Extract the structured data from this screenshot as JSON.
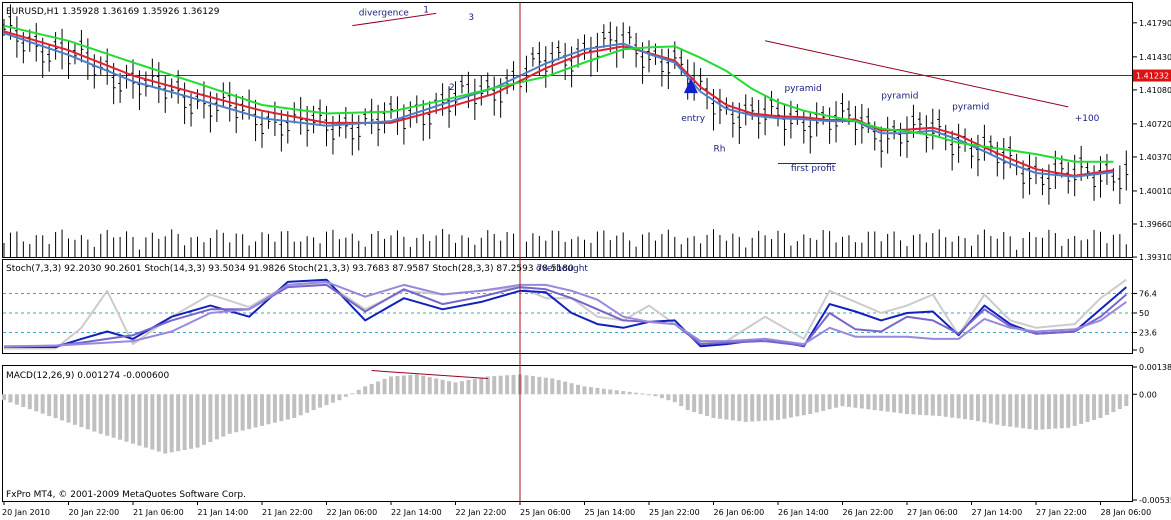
{
  "chart_data": {
    "type": "line",
    "main": {
      "title": "EURUSD,H1  1.35928 1.36169 1.35926 1.36129",
      "ylim": [
        1.393,
        1.42
      ],
      "yticks": [
        "1.41790",
        "1.41430",
        "1.41080",
        "1.40720",
        "1.40370",
        "1.40010",
        "1.39660",
        "1.39310"
      ],
      "ytick_values": [
        1.4179,
        1.4143,
        1.4108,
        1.4072,
        1.4037,
        1.4001,
        1.3966,
        1.3931
      ],
      "price_marker": "1.41232",
      "price_marker_value": 1.41232,
      "n_bars": 175,
      "series": [
        {
          "name": "red-ma",
          "color": "#dd2233",
          "x": [
            0,
            10,
            20,
            30,
            40,
            50,
            60,
            68,
            76,
            84,
            90,
            96,
            100,
            104,
            108,
            112,
            116,
            120,
            124,
            128,
            132,
            136,
            140,
            144,
            148,
            152,
            156,
            160,
            166,
            172
          ],
          "y": [
            1.417,
            1.415,
            1.4123,
            1.4104,
            1.4086,
            1.4073,
            1.4073,
            1.4088,
            1.4104,
            1.4131,
            1.4147,
            1.4154,
            1.4147,
            1.4139,
            1.4111,
            1.4092,
            1.4083,
            1.408,
            1.4079,
            1.4076,
            1.4077,
            1.4065,
            1.4066,
            1.4068,
            1.406,
            1.4047,
            1.4035,
            1.4024,
            1.4017,
            1.4023
          ]
        },
        {
          "name": "blue-ma",
          "color": "#4d7ec9",
          "x": [
            0,
            10,
            20,
            30,
            40,
            50,
            60,
            68,
            76,
            84,
            90,
            96,
            100,
            104,
            108,
            112,
            116,
            120,
            124,
            128,
            132,
            136,
            140,
            144,
            148,
            152,
            156,
            160,
            166,
            172
          ],
          "y": [
            1.4168,
            1.4145,
            1.4117,
            1.4098,
            1.4078,
            1.407,
            1.4075,
            1.4093,
            1.411,
            1.4136,
            1.4151,
            1.4157,
            1.4146,
            1.4137,
            1.4106,
            1.4088,
            1.4081,
            1.4078,
            1.4077,
            1.4075,
            1.4075,
            1.4062,
            1.4062,
            1.4065,
            1.4055,
            1.4043,
            1.403,
            1.402,
            1.4016,
            1.4021
          ]
        },
        {
          "name": "green-ma",
          "color": "#22dd33",
          "x": [
            0,
            10,
            20,
            30,
            40,
            50,
            60,
            68,
            76,
            84,
            90,
            96,
            100,
            104,
            108,
            112,
            116,
            120,
            124,
            128,
            132,
            136,
            140,
            144,
            148,
            152,
            156,
            160,
            166,
            172
          ],
          "y": [
            1.4176,
            1.416,
            1.4137,
            1.4115,
            1.4092,
            1.4083,
            1.4085,
            1.4097,
            1.411,
            1.4122,
            1.4137,
            1.4151,
            1.4153,
            1.4154,
            1.4142,
            1.4128,
            1.4109,
            1.4095,
            1.4086,
            1.408,
            1.4075,
            1.4067,
            1.4064,
            1.406,
            1.4052,
            1.4048,
            1.4044,
            1.404,
            1.4032,
            1.4032
          ]
        }
      ],
      "annotations": [
        {
          "text": "divergence",
          "x": 55,
          "y": 1.4187
        },
        {
          "text": "1",
          "x": 65,
          "y": 1.419
        },
        {
          "text": "3",
          "x": 72,
          "y": 1.4182
        },
        {
          "text": "2",
          "x": 69,
          "y": 1.4108
        },
        {
          "text": "entry",
          "x": 105,
          "y": 1.4075
        },
        {
          "text": "Rh",
          "x": 110,
          "y": 1.4043
        },
        {
          "text": "pyramid",
          "x": 121,
          "y": 1.4107
        },
        {
          "text": "pyramid",
          "x": 136,
          "y": 1.4099
        },
        {
          "text": "pyramid",
          "x": 147,
          "y": 1.4087
        },
        {
          "text": "first profit",
          "x": 122,
          "y": 1.4022
        },
        {
          "text": "+100",
          "x": 166,
          "y": 1.4075
        }
      ]
    },
    "stoch": {
      "title": "Stoch(7,3,3) 92.2030 90.2601  Stoch(14,3,3) 93.5034 91.9826  Stoch(21,3,3) 93.7683 87.9587  Stoch(28,3,3) 87.2593 78.5180",
      "annotation": "overbought",
      "ylim": [
        0,
        100
      ],
      "yticks": [
        "76.4",
        "50",
        "23.6",
        "0"
      ],
      "ytick_values": [
        76.4,
        50,
        23.6,
        0
      ],
      "series": [
        {
          "name": "Stoch(7,3,3)",
          "color": "#cccccc",
          "x": [
            0,
            8,
            12,
            16,
            20,
            26,
            32,
            38,
            44,
            50,
            56,
            62,
            68,
            74,
            80,
            84,
            88,
            92,
            96,
            100,
            104,
            108,
            112,
            118,
            124,
            128,
            132,
            136,
            140,
            144,
            148,
            152,
            156,
            160,
            166,
            170,
            174
          ],
          "y": [
            2,
            2,
            30,
            80,
            8,
            45,
            75,
            58,
            88,
            90,
            55,
            80,
            75,
            80,
            85,
            70,
            70,
            45,
            40,
            60,
            35,
            10,
            12,
            45,
            15,
            80,
            65,
            50,
            60,
            75,
            20,
            75,
            40,
            30,
            35,
            70,
            95
          ]
        },
        {
          "name": "Stoch(14,3,3)",
          "color": "#1122bb",
          "x": [
            0,
            8,
            12,
            16,
            20,
            26,
            32,
            38,
            44,
            50,
            56,
            62,
            68,
            74,
            80,
            84,
            88,
            92,
            96,
            100,
            104,
            108,
            112,
            118,
            124,
            128,
            132,
            136,
            140,
            144,
            148,
            152,
            156,
            160,
            166,
            170,
            174
          ],
          "y": [
            4,
            4,
            15,
            25,
            15,
            45,
            60,
            45,
            92,
            95,
            40,
            70,
            55,
            65,
            80,
            78,
            50,
            35,
            30,
            38,
            40,
            5,
            8,
            15,
            5,
            62,
            52,
            40,
            50,
            52,
            20,
            60,
            35,
            22,
            25,
            55,
            85
          ]
        },
        {
          "name": "Stoch(21,3,3)",
          "color": "#7766cc",
          "x": [
            0,
            8,
            12,
            16,
            20,
            26,
            32,
            38,
            44,
            50,
            56,
            62,
            68,
            74,
            80,
            84,
            88,
            92,
            96,
            100,
            104,
            108,
            112,
            118,
            124,
            128,
            132,
            136,
            140,
            144,
            148,
            152,
            156,
            160,
            166,
            170,
            174
          ],
          "y": [
            4,
            6,
            10,
            15,
            20,
            40,
            55,
            55,
            85,
            88,
            52,
            82,
            62,
            72,
            85,
            82,
            70,
            55,
            40,
            38,
            35,
            8,
            10,
            12,
            6,
            50,
            28,
            25,
            45,
            40,
            22,
            55,
            32,
            22,
            25,
            45,
            75
          ]
        },
        {
          "name": "Stoch(28,3,3)",
          "color": "#9988dd",
          "x": [
            0,
            8,
            12,
            16,
            20,
            26,
            32,
            38,
            44,
            50,
            56,
            62,
            68,
            74,
            80,
            84,
            88,
            92,
            96,
            100,
            104,
            108,
            112,
            118,
            124,
            128,
            132,
            136,
            140,
            144,
            148,
            152,
            156,
            160,
            166,
            170,
            174
          ],
          "y": [
            5,
            6,
            8,
            10,
            12,
            25,
            50,
            55,
            88,
            92,
            72,
            88,
            75,
            80,
            88,
            88,
            80,
            68,
            45,
            38,
            35,
            12,
            12,
            15,
            8,
            30,
            18,
            18,
            18,
            15,
            15,
            42,
            30,
            25,
            28,
            40,
            65
          ]
        }
      ]
    },
    "macd": {
      "title": "MACD(12,26,9) 0.001274 -0.000600",
      "ylim": [
        -0.00535,
        0.00138
      ],
      "yticks": [
        "0.00138",
        "0.00",
        "-0.00535"
      ],
      "ytick_values": [
        0.00138,
        0,
        -0.00535
      ],
      "series": [
        {
          "name": "MACD",
          "color": "#c0c0c0",
          "x": [
            0,
            15,
            25,
            30,
            35,
            40,
            45,
            48,
            52,
            56,
            60,
            64,
            70,
            75,
            80,
            85,
            90,
            95,
            100,
            104,
            106,
            110,
            115,
            120,
            125,
            130,
            135,
            140,
            145,
            150,
            155,
            160,
            165,
            170,
            174
          ],
          "y": [
            -0.0003,
            -0.002,
            -0.003,
            -0.0027,
            -0.002,
            -0.0016,
            -0.0012,
            -0.0008,
            -0.0003,
            0.0004,
            0.0009,
            0.001,
            0.0006,
            0.0009,
            0.001,
            0.0008,
            0.0004,
            0.0002,
            0.0,
            -0.0004,
            -0.0008,
            -0.0012,
            -0.0014,
            -0.0013,
            -0.001,
            -0.0006,
            -0.0008,
            -0.001,
            -0.0011,
            -0.0013,
            -0.0016,
            -0.0018,
            -0.0017,
            -0.0012,
            -0.0006
          ]
        }
      ]
    },
    "xticks": [
      "20 Jan 2010",
      "20 Jan 22:00",
      "21 Jan 06:00",
      "21 Jan 14:00",
      "21 Jan 22:00",
      "22 Jan 06:00",
      "22 Jan 14:00",
      "22 Jan 22:00",
      "25 Jan 06:00",
      "25 Jan 14:00",
      "25 Jan 22:00",
      "26 Jan 06:00",
      "26 Jan 14:00",
      "26 Jan 22:00",
      "27 Jan 06:00",
      "27 Jan 14:00",
      "27 Jan 22:00",
      "28 Jan 06:00"
    ],
    "xtick_bars": [
      0,
      10,
      20,
      30,
      40,
      50,
      60,
      70,
      80,
      90,
      100,
      110,
      120,
      130,
      140,
      150,
      160,
      170
    ],
    "crosshair_bar": 80,
    "copyright": "FxPro MT4, © 2001-2009 MetaQuotes Software Corp."
  }
}
